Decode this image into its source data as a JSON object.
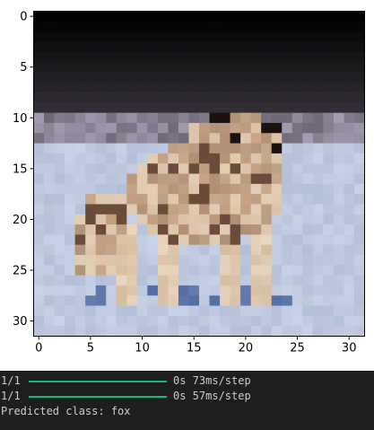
{
  "figure": {
    "image_description_title": "",
    "axes": {
      "x_ticks": [
        "0",
        "5",
        "10",
        "15",
        "20",
        "25",
        "30"
      ],
      "y_ticks": [
        "0",
        "5",
        "10",
        "15",
        "20",
        "25",
        "30"
      ],
      "x_range": [
        -0.5,
        31.5
      ],
      "y_range": [
        -0.5,
        31.5
      ]
    },
    "image_grid_size": 32,
    "colors": {
      "sky_dark": "#4a4352",
      "sky_mid": "#6e6775",
      "sky_light": "#a39bb0",
      "snow": "#c8d2e6",
      "snow_shadow": "#a7b3cf",
      "fox_body": "#c9a989",
      "fox_dark": "#6b4c3a",
      "fox_black": "#1a1110",
      "fox_pale": "#e8d6bf",
      "blue_shadow": "#3c5a9a"
    }
  },
  "console": {
    "lines": [
      {
        "counter": "1/1",
        "progress": 1.0,
        "status": "0s 73ms/step"
      },
      {
        "counter": "1/1",
        "progress": 1.0,
        "status": "0s 57ms/step"
      }
    ],
    "prediction": "Predicted class: fox",
    "colors": {
      "background": "#1e1e1e",
      "text": "#cccccc",
      "progress": "#0dbc79"
    }
  }
}
